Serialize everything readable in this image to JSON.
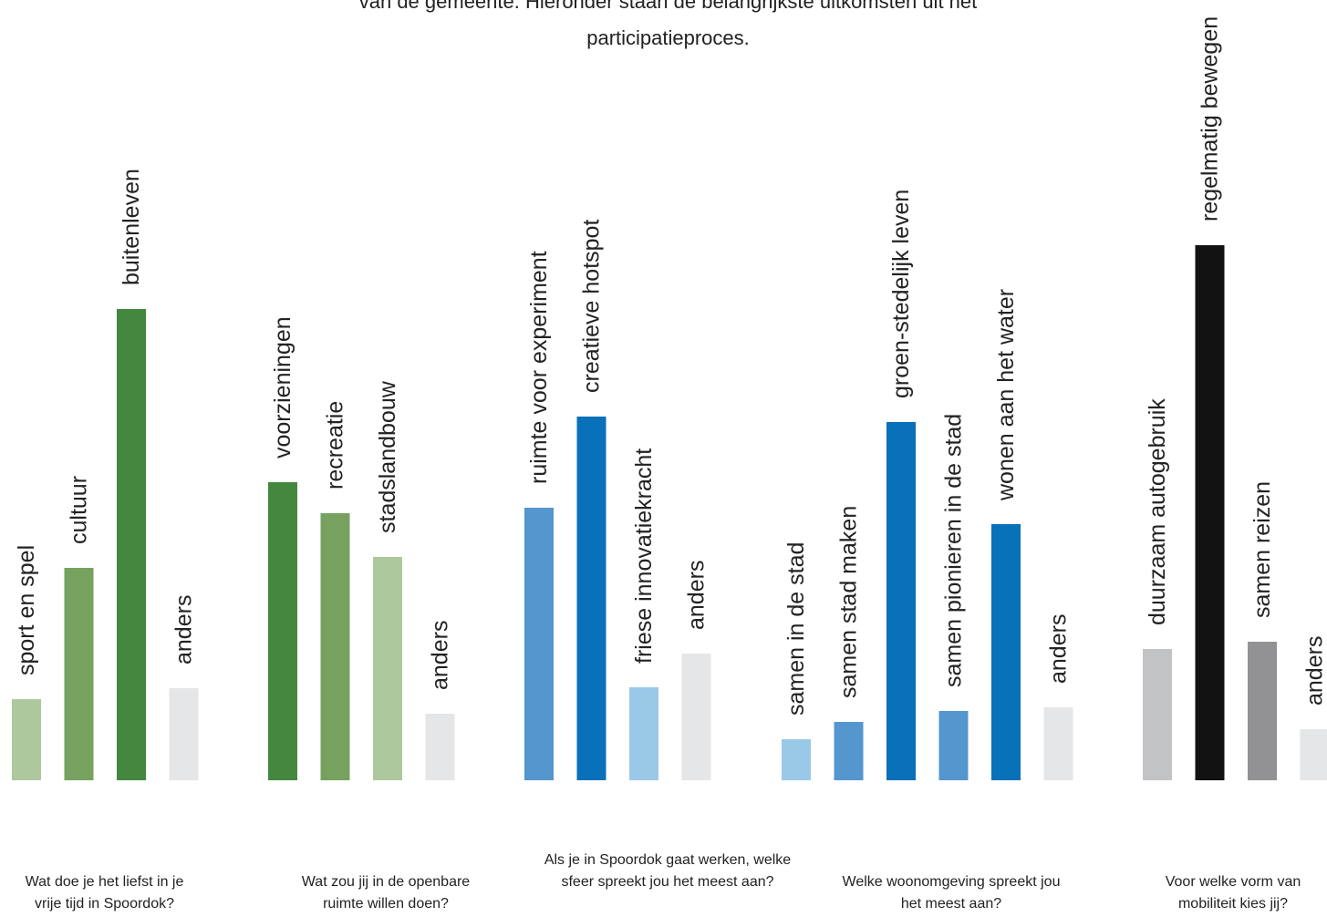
{
  "intro": {
    "line1": "van de gemeente. Hieronder staan de belangrijkste uitkomsten uit het",
    "line2": "participatieproces."
  },
  "chart_data": [
    {
      "type": "bar",
      "question": "Wat doe je het liefst in je vrije tijd in Spoordok?",
      "categories": [
        "sport en spel",
        "cultuur",
        "buitenleven",
        "anders"
      ],
      "values": [
        89,
        233,
        517,
        101
      ],
      "colors": [
        "#adc89d",
        "#77a15f",
        "#448840",
        "#e5e6e7"
      ]
    },
    {
      "type": "bar",
      "question": "Wat zou jij in de openbare ruimte willen doen?",
      "categories": [
        "voorzieningen",
        "recreatie",
        "stadslandbouw",
        "anders"
      ],
      "values": [
        327,
        293,
        245,
        73
      ],
      "colors": [
        "#448840",
        "#77a15f",
        "#adc89d",
        "#e5e6e7"
      ]
    },
    {
      "type": "bar",
      "question": "Als je in Spoordok gaat werken, welke sfeer spreekt jou het meest aan?",
      "categories": [
        "ruimte voor experiment",
        "creatieve hotspot",
        "friese innovatiekracht",
        "anders"
      ],
      "values": [
        299,
        399,
        102,
        139
      ],
      "colors": [
        "#5496ce",
        "#0970ba",
        "#9ac9e8",
        "#e5e6e7"
      ]
    },
    {
      "type": "bar",
      "question": "Welke woonomgeving spreekt jou het meest aan?",
      "categories": [
        "samen in de stad",
        "samen stad maken",
        "groen-stedelijk leven",
        "samen pionieren in de stad",
        "wonen aan het water",
        "anders"
      ],
      "values": [
        45,
        64,
        393,
        76,
        281,
        80
      ],
      "colors": [
        "#9ac9e8",
        "#5496ce",
        "#0970ba",
        "#5496ce",
        "#0970ba",
        "#e5e6e7"
      ]
    },
    {
      "type": "bar",
      "question": "Voor welke vorm van mobiliteit kies jij?",
      "categories": [
        "duurzaam autogebruik",
        "regelmatig bewegen",
        "samen reizen",
        "anders"
      ],
      "values": [
        144,
        587,
        152,
        56
      ],
      "colors": [
        "#c2c3c4",
        "#121212",
        "#929295",
        "#e5e6e7"
      ]
    }
  ]
}
